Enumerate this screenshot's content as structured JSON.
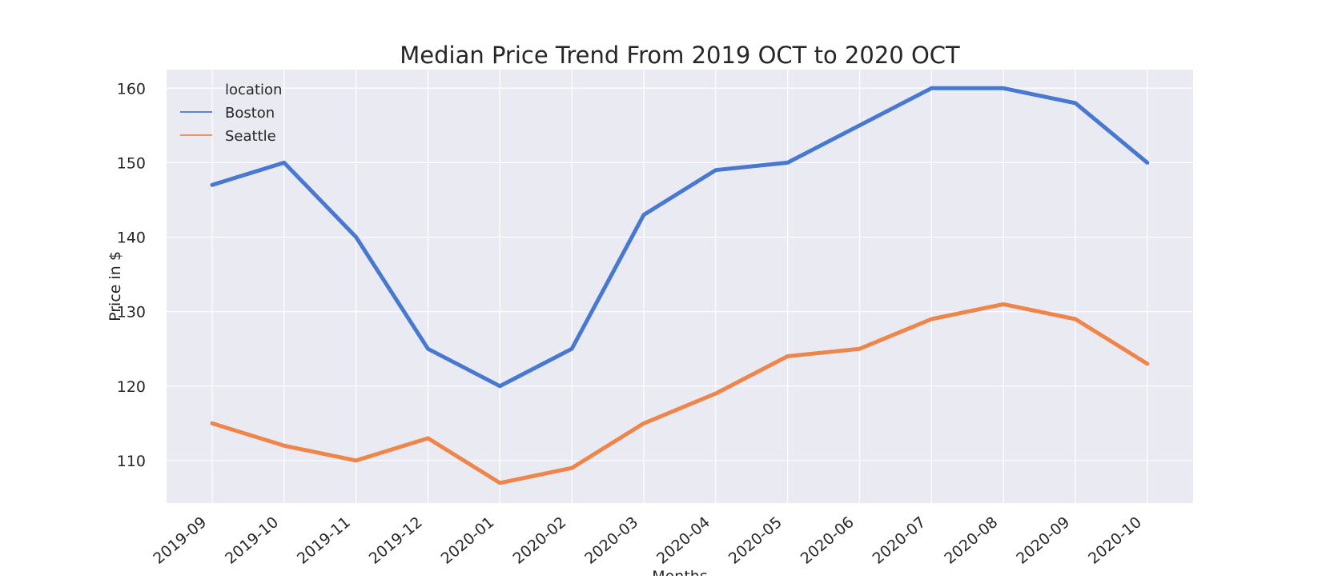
{
  "chart_data": {
    "type": "line",
    "title": "Median Price Trend From 2019 OCT to 2020 OCT",
    "xlabel": "Months",
    "ylabel": "Price in $",
    "categories": [
      "2019-09",
      "2019-10",
      "2019-11",
      "2019-12",
      "2020-01",
      "2020-02",
      "2020-03",
      "2020-04",
      "2020-05",
      "2020-06",
      "2020-07",
      "2020-08",
      "2020-09",
      "2020-10"
    ],
    "ylim": [
      104.3,
      162.5
    ],
    "yticks": [
      110,
      120,
      130,
      140,
      150,
      160
    ],
    "grid": true,
    "legend": {
      "title": "location",
      "placement": "top-left"
    },
    "series": [
      {
        "name": "Boston",
        "color": "#4878d0",
        "values": [
          147,
          150,
          140,
          125,
          120,
          125,
          143,
          149,
          150,
          155,
          160,
          160,
          158,
          150
        ]
      },
      {
        "name": "Seattle",
        "color": "#ee854a",
        "values": [
          115,
          112,
          110,
          113,
          107,
          109,
          115,
          119,
          124,
          125,
          129,
          131,
          129,
          123
        ]
      }
    ]
  }
}
